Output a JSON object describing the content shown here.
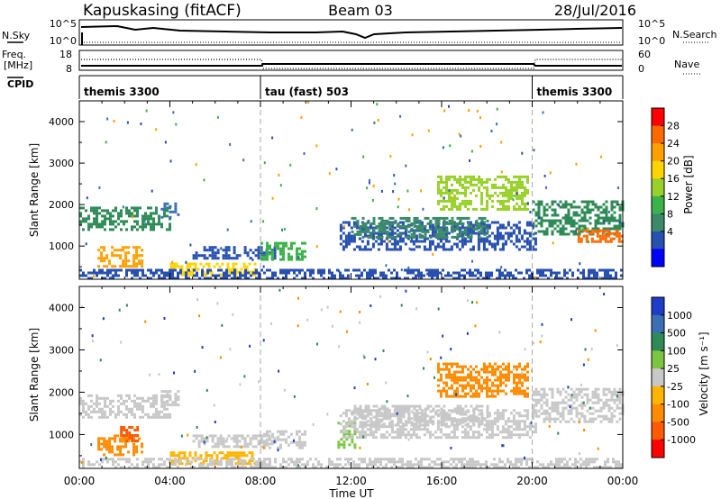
{
  "header": {
    "station": "Kapuskasing (fitACF)",
    "beam": "Beam 03",
    "date": "28/Jul/2016"
  },
  "status_panels": {
    "nsky_label": "N.Sky",
    "nsky_top": "10^5",
    "nsky_bottom": "10^0",
    "nsearch_label": "N.Search",
    "nsearch_top": "10^5",
    "nsearch_bottom": "10^0",
    "freq_label_1": "Freq.",
    "freq_label_2": "[MHz]",
    "freq_top": "18",
    "freq_bottom": "8",
    "nave_label": "Nave",
    "nave_top": "60",
    "nave_bottom": "0",
    "cpid_label": "CPID",
    "cpid_segments": [
      {
        "label": "themis 3300",
        "start_hour": 0
      },
      {
        "label": "tau (fast) 503",
        "start_hour": 8
      },
      {
        "label": "themis 3300",
        "start_hour": 20
      }
    ]
  },
  "power_colorbar": {
    "title": "Power [dB]",
    "ticks": [
      "28",
      "24",
      "20",
      "16",
      "12",
      "8",
      "4"
    ],
    "colors": [
      "#ff0000",
      "#ff6a00",
      "#ffa000",
      "#ffd400",
      "#98d12a",
      "#3cb34a",
      "#3a8a6a",
      "#2850b0",
      "#0000ff"
    ]
  },
  "velocity_colorbar": {
    "title": "Velocity [m s⁻¹]",
    "ticks": [
      "1000",
      "500",
      "100",
      "25",
      "-25",
      "-100",
      "-500",
      "-1000"
    ],
    "colors": [
      "#1e3cc8",
      "#3a6fb4",
      "#2e8b57",
      "#7cc540",
      "#c8c8c8",
      "#ffb400",
      "#ff8c00",
      "#ff5a00",
      "#ff0000"
    ]
  },
  "chart_data": [
    {
      "type": "heatmap",
      "name_hint": "power",
      "ylabel": "Slant Range [km]",
      "xlabel": "Time UT",
      "xlim_hours": [
        0,
        24
      ],
      "ylim": [
        200,
        4500
      ],
      "yticks": [
        1000,
        2000,
        3000,
        4000
      ],
      "xtick_labels": [
        "00:00",
        "04:00",
        "08:00",
        "12:00",
        "16:00",
        "20:00",
        "00:00"
      ],
      "bands": [
        {
          "t0": 0.0,
          "t1": 4.0,
          "r0": 1400,
          "r1": 1950,
          "color": "#2e8b57"
        },
        {
          "t0": 0.8,
          "t1": 2.8,
          "r0": 500,
          "r1": 1000,
          "color": "#ffa000"
        },
        {
          "t0": 3.6,
          "t1": 4.4,
          "r0": 1700,
          "r1": 2050,
          "color": "#3a6fb4"
        },
        {
          "t0": 4.0,
          "t1": 7.8,
          "r0": 300,
          "r1": 600,
          "color": "#ffd400"
        },
        {
          "t0": 5.0,
          "t1": 8.6,
          "r0": 700,
          "r1": 1000,
          "color": "#2850b0"
        },
        {
          "t0": 8.0,
          "t1": 10.0,
          "r0": 700,
          "r1": 1100,
          "color": "#3cb34a"
        },
        {
          "t0": 11.5,
          "t1": 20.2,
          "r0": 900,
          "r1": 1600,
          "color": "#2850b0"
        },
        {
          "t0": 12.0,
          "t1": 18.0,
          "r0": 1200,
          "r1": 1700,
          "color": "#3a8a6a"
        },
        {
          "t0": 15.8,
          "t1": 19.8,
          "r0": 1900,
          "r1": 2700,
          "color": "#98d12a"
        },
        {
          "t0": 20.0,
          "t1": 24.0,
          "r0": 1300,
          "r1": 2100,
          "color": "#2e8b57"
        },
        {
          "t0": 22.0,
          "t1": 24.0,
          "r0": 1100,
          "r1": 1400,
          "color": "#ff6a00"
        },
        {
          "t0": 0.0,
          "t1": 24.0,
          "r0": 200,
          "r1": 450,
          "color": "#2850b0"
        }
      ]
    },
    {
      "type": "heatmap",
      "name_hint": "velocity",
      "ylabel": "Slant Range [km]",
      "xlabel": "Time UT",
      "xlim_hours": [
        0,
        24
      ],
      "ylim": [
        200,
        4500
      ],
      "yticks": [
        1000,
        2000,
        3000,
        4000
      ],
      "xtick_labels": [
        "00:00",
        "04:00",
        "08:00",
        "12:00",
        "16:00",
        "20:00",
        "00:00"
      ],
      "bands": [
        {
          "t0": 0.0,
          "t1": 4.0,
          "r0": 1400,
          "r1": 1950,
          "color": "#c8c8c8"
        },
        {
          "t0": 0.8,
          "t1": 2.8,
          "r0": 500,
          "r1": 1000,
          "color": "#ff8c00"
        },
        {
          "t0": 1.8,
          "t1": 2.6,
          "r0": 850,
          "r1": 1200,
          "color": "#ff5a00"
        },
        {
          "t0": 3.6,
          "t1": 4.4,
          "r0": 1700,
          "r1": 2050,
          "color": "#c8c8c8"
        },
        {
          "t0": 4.0,
          "t1": 7.8,
          "r0": 300,
          "r1": 600,
          "color": "#ffb400"
        },
        {
          "t0": 5.0,
          "t1": 8.6,
          "r0": 700,
          "r1": 1000,
          "color": "#c8c8c8"
        },
        {
          "t0": 8.0,
          "t1": 10.0,
          "r0": 700,
          "r1": 1100,
          "color": "#c8c8c8"
        },
        {
          "t0": 11.4,
          "t1": 12.2,
          "r0": 700,
          "r1": 1300,
          "color": "#7cc540"
        },
        {
          "t0": 11.5,
          "t1": 20.2,
          "r0": 900,
          "r1": 1600,
          "color": "#c8c8c8"
        },
        {
          "t0": 12.0,
          "t1": 18.0,
          "r0": 1200,
          "r1": 1700,
          "color": "#c8c8c8"
        },
        {
          "t0": 15.8,
          "t1": 19.8,
          "r0": 1900,
          "r1": 2700,
          "color": "#ff8c00"
        },
        {
          "t0": 20.0,
          "t1": 24.0,
          "r0": 1300,
          "r1": 2100,
          "color": "#c8c8c8"
        },
        {
          "t0": 0.0,
          "t1": 24.0,
          "r0": 200,
          "r1": 450,
          "color": "#c8c8c8"
        }
      ]
    }
  ]
}
